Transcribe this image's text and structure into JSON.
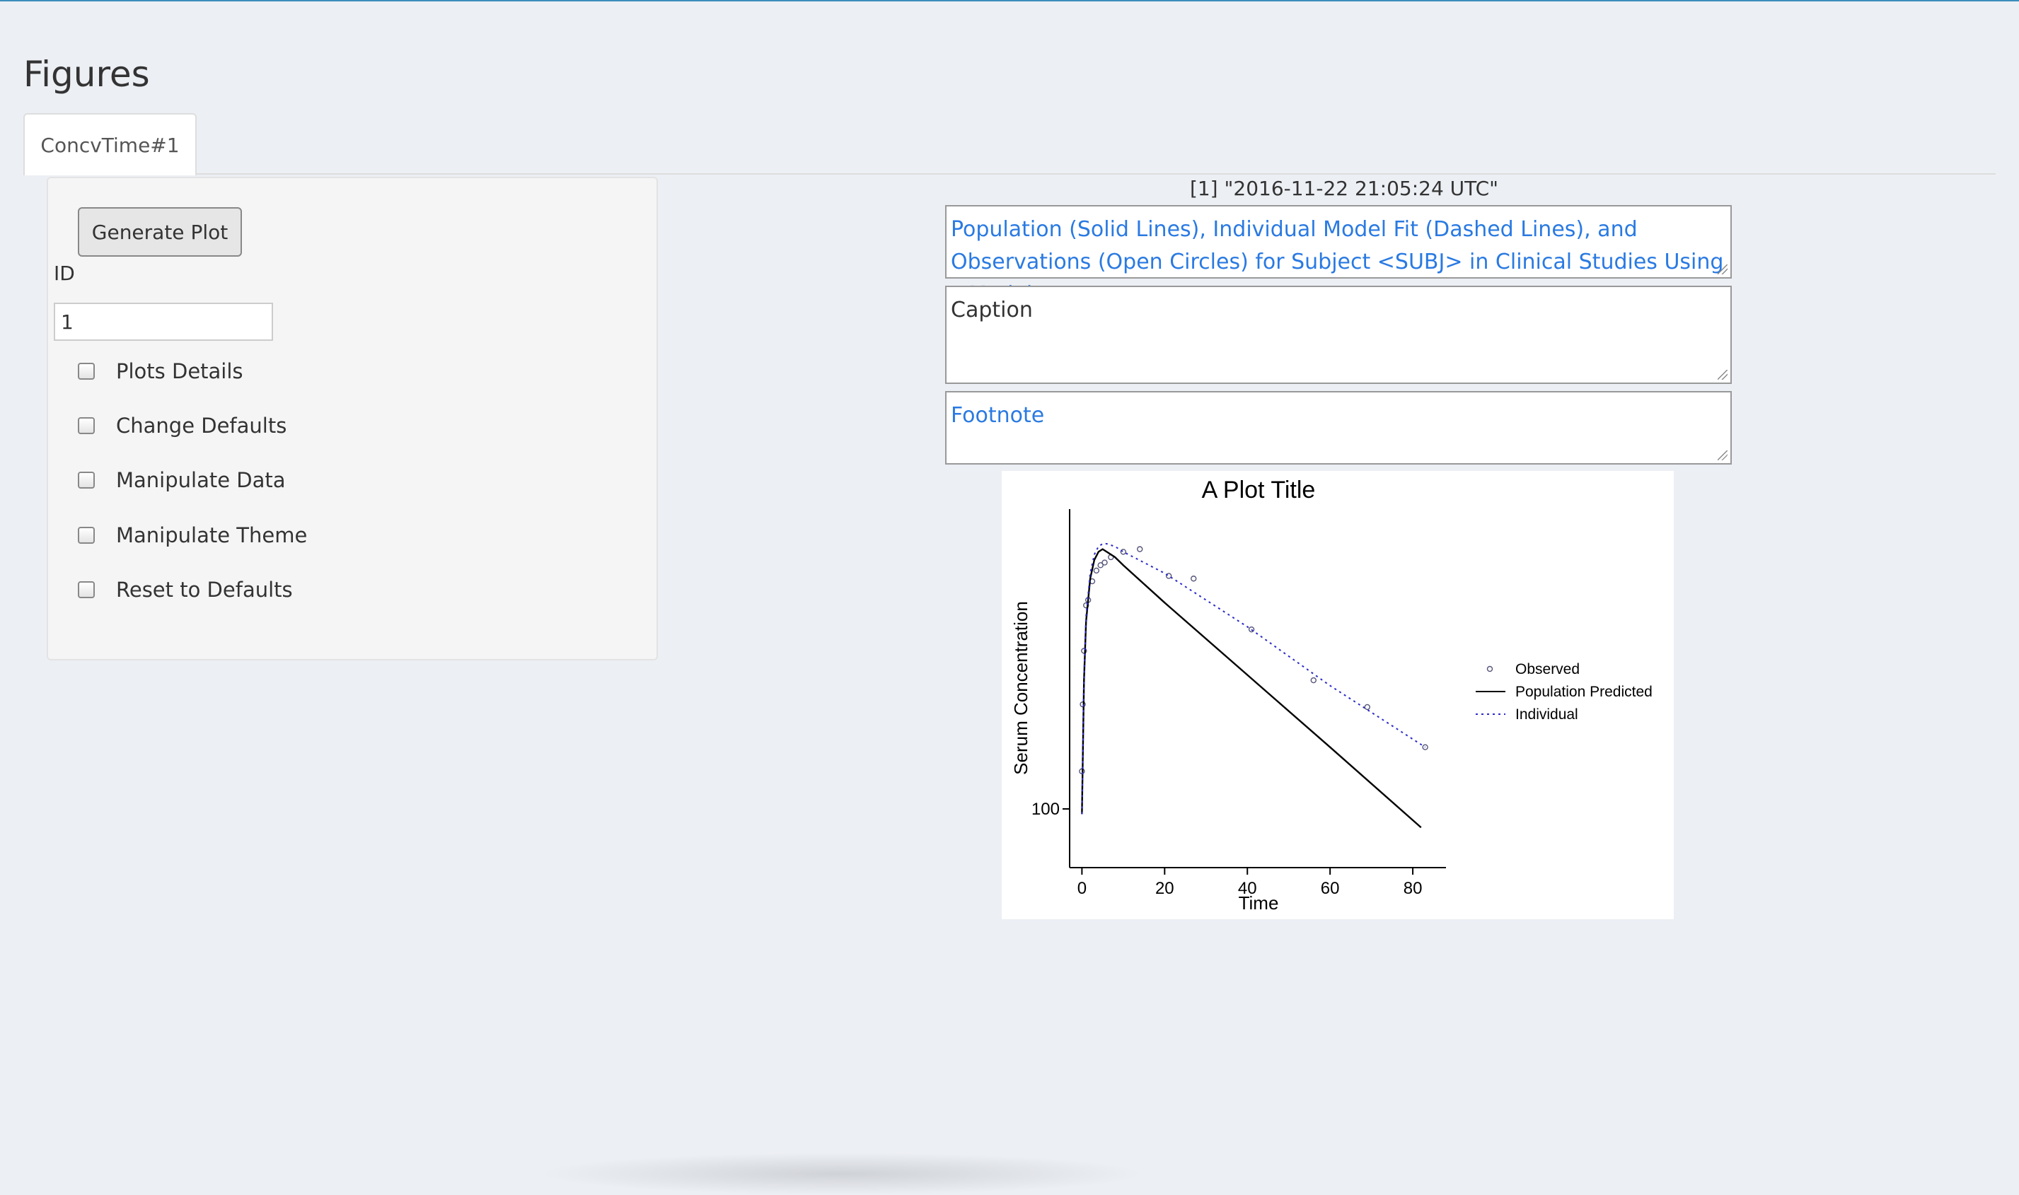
{
  "page": {
    "title": "Figures"
  },
  "tabs": [
    {
      "label": "ConcvTime#1"
    }
  ],
  "controls": {
    "generate_button": "Generate Plot",
    "id_label": "ID",
    "id_value": "1",
    "checkboxes": [
      {
        "label": "Plots Details"
      },
      {
        "label": "Change Defaults"
      },
      {
        "label": "Manipulate Data"
      },
      {
        "label": "Manipulate Theme"
      },
      {
        "label": "Reset to Defaults"
      }
    ]
  },
  "output": {
    "timestamp": "[1] \"2016-11-22 21:05:24 UTC\"",
    "title_text": "Population (Solid Lines), Individual Model Fit (Dashed Lines), and Observations (Open Circles) for Subject <SUBJ> in Clinical Studies Using <Model>",
    "caption_text": "Caption",
    "footnote_text": "Footnote"
  },
  "colors": {
    "accent": "#3c8dbc",
    "link_blue": "#2a7ae2",
    "individual": "#2b2bc8"
  },
  "chart_data": {
    "type": "line",
    "title": "A Plot Title",
    "xlabel": "Time",
    "ylabel": "Serum Concentration",
    "xlim": [
      -4,
      87
    ],
    "ylim": [
      0,
      100
    ],
    "x_ticks": [
      "0",
      "20",
      "40",
      "60",
      "80"
    ],
    "y_ticks": [
      "100"
    ],
    "legend": [
      {
        "name": "Observed",
        "marker": "circle"
      },
      {
        "name": "Population Predicted",
        "style": "solid"
      },
      {
        "name": "Individual",
        "style": "dotted"
      }
    ],
    "series": [
      {
        "name": "Observed",
        "kind": "scatter",
        "x": [
          0.0,
          0.2,
          0.5,
          1.0,
          1.5,
          2.5,
          3.5,
          4.5,
          5.5,
          7,
          10,
          14,
          21,
          27,
          41,
          56,
          69,
          83
        ],
        "y": [
          16,
          41,
          61,
          78,
          80,
          87,
          91,
          93,
          94,
          96,
          98,
          99,
          89,
          88,
          69,
          50,
          40,
          25
        ]
      },
      {
        "name": "Population Predicted",
        "kind": "line",
        "x": [
          0,
          0.5,
          1,
          2,
          3,
          4,
          5,
          6,
          8,
          10,
          20,
          40,
          60,
          82
        ],
        "y": [
          0,
          50,
          72,
          88,
          95,
          98,
          99,
          98,
          96,
          93,
          79,
          52,
          25,
          -5
        ]
      },
      {
        "name": "Individual",
        "kind": "line",
        "x": [
          0,
          0.5,
          1,
          2,
          3,
          4,
          5,
          6,
          8,
          10,
          20,
          40,
          60,
          83
        ],
        "y": [
          0,
          52,
          74,
          90,
          97,
          100,
          101,
          101,
          100,
          98,
          90,
          70,
          48,
          25
        ]
      }
    ]
  }
}
